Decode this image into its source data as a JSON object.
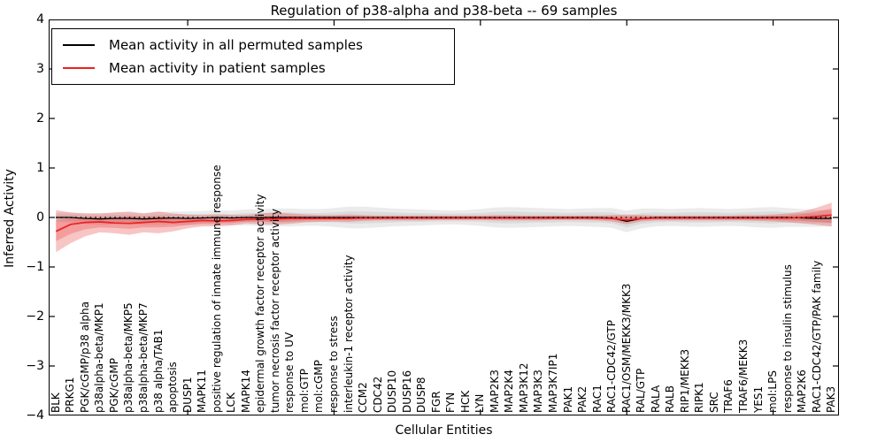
{
  "legend": {
    "items": [
      {
        "label": "Mean activity in all permuted samples",
        "color": "#000000"
      },
      {
        "label": "Mean activity in patient samples",
        "color": "#ee2020"
      }
    ]
  },
  "chart_data": {
    "type": "line",
    "title": "Regulation of p38-alpha and p38-beta -- 69 samples",
    "xlabel": "Cellular Entities",
    "ylabel": "Inferred Activity",
    "ylim": [
      -4,
      4
    ],
    "yticks": [
      4,
      3,
      2,
      1,
      0,
      -1,
      -2,
      -3,
      -4
    ],
    "xticks": [
      10,
      20,
      30,
      40,
      50
    ],
    "grid": false,
    "zero_line_style": "dotted",
    "legend_position": "upper left",
    "colors": {
      "permuted_line": "#000000",
      "patient_line": "#ee2020",
      "permuted_band": "rgba(130,130,130,0.16)",
      "patient_band": "rgba(228,30,30,0.26)"
    },
    "categories": [
      "BLK",
      "PRKG1",
      "PGK/cGMP/p38 alpha",
      "p38alpha-beta/MKP1",
      "PGK/cGMP",
      "p38alpha-beta/MKP5",
      "p38alpha-beta/MKP7",
      "p38 alpha/TAB1",
      "apoptosis",
      "DUSP1",
      "MAPK11",
      "positive regulation of innate immune response",
      "LCK",
      "MAPK14",
      "epidermal growth factor receptor activity",
      "tumor necrosis factor receptor activity",
      "response to UV",
      "mol:GTP",
      "mol:cGMP",
      "response to stress",
      "interleukin-1 receptor activity",
      "CCM2",
      "CDC42",
      "DUSP10",
      "DUSP16",
      "DUSP8",
      "FGR",
      "FYN",
      "HCK",
      "LYN",
      "MAP2K3",
      "MAP2K4",
      "MAP3K12",
      "MAP3K3",
      "MAP3K7IP1",
      "PAK1",
      "PAK2",
      "RAC1",
      "RAC1-CDC42/GTP",
      "RAC1/OSM/MEKK3/MKK3",
      "RAL/GTP",
      "RALA",
      "RALB",
      "RIP1/MEKK3",
      "RIPK1",
      "SRC",
      "TRAF6",
      "TRAF6/MEKK3",
      "YES1",
      "mol:LPS",
      "response to insulin stimulus",
      "MAP2K6",
      "RAC1-CDC42/GTP/PAK family",
      "PAK3"
    ],
    "series": [
      {
        "name": "Mean activity in all permuted samples",
        "values": [
          0.0,
          0.0,
          -0.02,
          -0.03,
          -0.02,
          -0.02,
          -0.03,
          -0.02,
          -0.01,
          -0.02,
          -0.01,
          0.0,
          -0.01,
          0.0,
          0.0,
          0.0,
          0.0,
          0.0,
          0.0,
          0.0,
          0.0,
          0.0,
          0.0,
          0.0,
          0.0,
          0.0,
          0.0,
          0.0,
          0.0,
          0.0,
          0.0,
          0.0,
          0.0,
          0.0,
          0.0,
          0.0,
          0.0,
          0.0,
          -0.01,
          -0.08,
          -0.02,
          0.0,
          0.0,
          0.0,
          0.0,
          0.0,
          0.0,
          0.0,
          0.0,
          0.0,
          0.0,
          -0.01,
          -0.02,
          -0.02
        ]
      },
      {
        "name": "Mean activity in patient samples",
        "values": [
          -0.28,
          -0.14,
          -0.1,
          -0.09,
          -0.11,
          -0.12,
          -0.1,
          -0.08,
          -0.1,
          -0.08,
          -0.06,
          -0.07,
          -0.06,
          -0.04,
          -0.03,
          -0.03,
          -0.02,
          -0.02,
          -0.02,
          -0.02,
          -0.02,
          -0.01,
          -0.01,
          -0.01,
          -0.01,
          -0.01,
          -0.01,
          -0.01,
          -0.01,
          -0.01,
          -0.01,
          -0.01,
          -0.01,
          -0.01,
          -0.01,
          -0.01,
          -0.01,
          -0.01,
          -0.02,
          -0.05,
          -0.02,
          -0.01,
          -0.01,
          -0.01,
          -0.01,
          -0.01,
          -0.01,
          -0.01,
          -0.01,
          -0.01,
          -0.01,
          0.0,
          0.02,
          0.05
        ]
      }
    ],
    "bands": [
      {
        "name": "permuted-outer-band",
        "lo": [
          -0.08,
          -0.1,
          -0.13,
          -0.15,
          -0.14,
          -0.14,
          -0.15,
          -0.15,
          -0.14,
          -0.16,
          -0.15,
          -0.15,
          -0.16,
          -0.16,
          -0.17,
          -0.18,
          -0.18,
          -0.17,
          -0.17,
          -0.19,
          -0.22,
          -0.22,
          -0.2,
          -0.18,
          -0.17,
          -0.16,
          -0.15,
          -0.14,
          -0.15,
          -0.17,
          -0.2,
          -0.21,
          -0.2,
          -0.19,
          -0.18,
          -0.17,
          -0.18,
          -0.19,
          -0.21,
          -0.3,
          -0.22,
          -0.18,
          -0.17,
          -0.18,
          -0.19,
          -0.18,
          -0.17,
          -0.18,
          -0.2,
          -0.21,
          -0.19,
          -0.19,
          -0.19,
          -0.18
        ],
        "hi": [
          0.1,
          0.1,
          0.09,
          0.09,
          0.1,
          0.1,
          0.09,
          0.11,
          0.12,
          0.12,
          0.13,
          0.15,
          0.14,
          0.16,
          0.17,
          0.18,
          0.18,
          0.17,
          0.17,
          0.19,
          0.22,
          0.22,
          0.2,
          0.18,
          0.17,
          0.16,
          0.15,
          0.14,
          0.15,
          0.17,
          0.2,
          0.21,
          0.2,
          0.19,
          0.18,
          0.17,
          0.18,
          0.19,
          0.19,
          0.14,
          0.18,
          0.18,
          0.17,
          0.18,
          0.19,
          0.18,
          0.17,
          0.18,
          0.2,
          0.21,
          0.19,
          0.17,
          0.15,
          0.14
        ]
      },
      {
        "name": "permuted-inner-band",
        "lo": [
          -0.04,
          -0.06,
          -0.08,
          -0.1,
          -0.09,
          -0.09,
          -0.1,
          -0.09,
          -0.08,
          -0.1,
          -0.09,
          -0.08,
          -0.09,
          -0.09,
          -0.09,
          -0.1,
          -0.1,
          -0.09,
          -0.09,
          -0.1,
          -0.12,
          -0.12,
          -0.11,
          -0.1,
          -0.09,
          -0.09,
          -0.08,
          -0.08,
          -0.08,
          -0.09,
          -0.11,
          -0.12,
          -0.11,
          -0.1,
          -0.1,
          -0.09,
          -0.1,
          -0.1,
          -0.12,
          -0.2,
          -0.13,
          -0.1,
          -0.09,
          -0.1,
          -0.1,
          -0.1,
          -0.09,
          -0.1,
          -0.11,
          -0.12,
          -0.1,
          -0.11,
          -0.11,
          -0.11
        ],
        "hi": [
          0.06,
          0.06,
          0.04,
          0.04,
          0.05,
          0.05,
          0.04,
          0.05,
          0.06,
          0.06,
          0.07,
          0.08,
          0.07,
          0.09,
          0.09,
          0.1,
          0.1,
          0.09,
          0.09,
          0.1,
          0.12,
          0.12,
          0.11,
          0.1,
          0.09,
          0.09,
          0.08,
          0.08,
          0.08,
          0.09,
          0.11,
          0.12,
          0.11,
          0.1,
          0.1,
          0.09,
          0.1,
          0.1,
          0.1,
          0.04,
          0.09,
          0.1,
          0.09,
          0.1,
          0.1,
          0.1,
          0.09,
          0.1,
          0.11,
          0.12,
          0.1,
          0.09,
          0.07,
          0.07
        ]
      },
      {
        "name": "patient-outer-band",
        "lo": [
          -0.7,
          -0.52,
          -0.38,
          -0.3,
          -0.32,
          -0.35,
          -0.3,
          -0.32,
          -0.28,
          -0.22,
          -0.18,
          -0.18,
          -0.16,
          -0.12,
          -0.14,
          -0.15,
          -0.13,
          -0.1,
          -0.09,
          -0.08,
          -0.09,
          -0.07,
          -0.06,
          -0.06,
          -0.06,
          -0.06,
          -0.05,
          -0.05,
          -0.05,
          -0.05,
          -0.06,
          -0.06,
          -0.06,
          -0.06,
          -0.05,
          -0.05,
          -0.05,
          -0.06,
          -0.08,
          -0.14,
          -0.08,
          -0.06,
          -0.06,
          -0.06,
          -0.06,
          -0.06,
          -0.06,
          -0.06,
          -0.07,
          -0.08,
          -0.1,
          -0.12,
          -0.15,
          -0.18
        ],
        "hi": [
          0.15,
          0.1,
          0.08,
          0.08,
          0.1,
          0.12,
          0.08,
          0.12,
          0.08,
          0.06,
          0.05,
          0.06,
          0.05,
          0.05,
          0.08,
          0.1,
          0.08,
          0.06,
          0.05,
          0.05,
          0.06,
          0.05,
          0.04,
          0.04,
          0.04,
          0.04,
          0.04,
          0.04,
          0.04,
          0.04,
          0.05,
          0.05,
          0.04,
          0.04,
          0.04,
          0.04,
          0.04,
          0.04,
          0.05,
          0.06,
          0.05,
          0.04,
          0.04,
          0.04,
          0.04,
          0.04,
          0.04,
          0.05,
          0.05,
          0.06,
          0.08,
          0.12,
          0.2,
          0.3
        ]
      },
      {
        "name": "patient-inner-band",
        "lo": [
          -0.48,
          -0.33,
          -0.24,
          -0.2,
          -0.21,
          -0.23,
          -0.2,
          -0.2,
          -0.19,
          -0.15,
          -0.12,
          -0.12,
          -0.11,
          -0.08,
          -0.08,
          -0.09,
          -0.08,
          -0.06,
          -0.05,
          -0.05,
          -0.05,
          -0.04,
          -0.04,
          -0.03,
          -0.03,
          -0.03,
          -0.03,
          -0.03,
          -0.03,
          -0.03,
          -0.03,
          -0.03,
          -0.03,
          -0.03,
          -0.03,
          -0.03,
          -0.03,
          -0.03,
          -0.05,
          -0.09,
          -0.05,
          -0.03,
          -0.03,
          -0.03,
          -0.03,
          -0.03,
          -0.03,
          -0.04,
          -0.04,
          -0.05,
          -0.06,
          -0.07,
          -0.09,
          -0.11
        ],
        "hi": [
          -0.05,
          -0.02,
          -0.01,
          0.0,
          0.0,
          0.02,
          0.0,
          0.02,
          0.0,
          -0.01,
          0.0,
          0.0,
          0.0,
          0.01,
          0.02,
          0.03,
          0.03,
          0.02,
          0.02,
          0.02,
          0.02,
          0.02,
          0.01,
          0.01,
          0.01,
          0.01,
          0.01,
          0.01,
          0.01,
          0.01,
          0.01,
          0.01,
          0.01,
          0.01,
          0.01,
          0.01,
          0.01,
          0.01,
          0.02,
          0.02,
          0.02,
          0.01,
          0.01,
          0.01,
          0.01,
          0.01,
          0.01,
          0.02,
          0.02,
          0.03,
          0.04,
          0.07,
          0.12,
          0.18
        ]
      }
    ]
  }
}
